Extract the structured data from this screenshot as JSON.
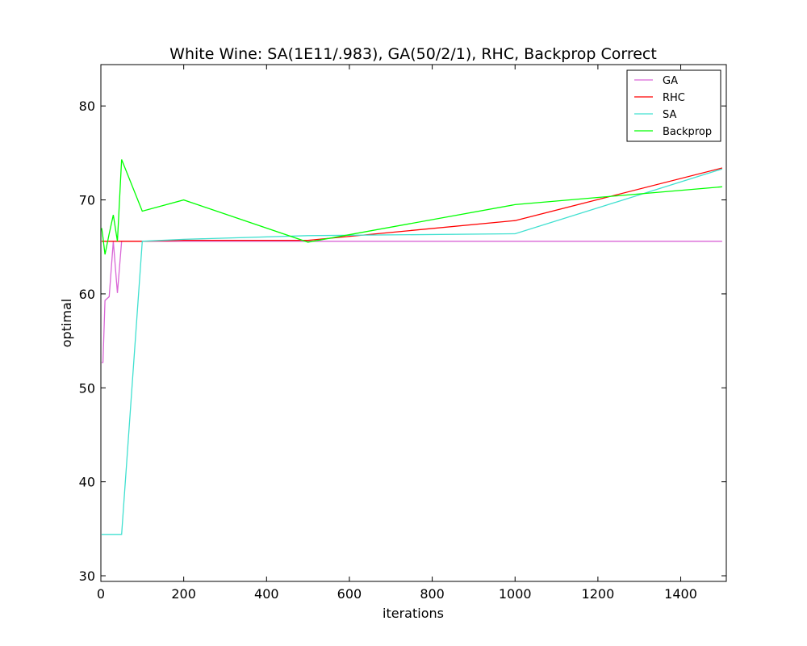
{
  "chart_data": {
    "type": "line",
    "title": "White Wine: SA(1E11/.983), GA(50/2/1), RHC, Backprop Correct",
    "xlabel": "iterations",
    "ylabel": "optimal",
    "xlim": [
      0,
      1510
    ],
    "ylim": [
      29.4,
      84.4
    ],
    "xticks": [
      0,
      200,
      400,
      600,
      800,
      1000,
      1200,
      1400
    ],
    "yticks": [
      30,
      40,
      50,
      60,
      70,
      80
    ],
    "grid": false,
    "legend_position": "top-right",
    "series": [
      {
        "name": "GA",
        "color": "#d966d6",
        "x": [
          2,
          5,
          10,
          20,
          30,
          40,
          50,
          100,
          200,
          500,
          1000,
          1500
        ],
        "y": [
          52.7,
          52.7,
          59.3,
          59.7,
          65.6,
          60.1,
          65.6,
          65.6,
          65.6,
          65.6,
          65.6,
          65.6
        ]
      },
      {
        "name": "RHC",
        "color": "#ff0000",
        "x": [
          2,
          5,
          10,
          20,
          30,
          40,
          50,
          100,
          200,
          500,
          1000,
          1500
        ],
        "y": [
          65.6,
          65.6,
          65.6,
          65.6,
          65.6,
          65.6,
          65.6,
          65.6,
          65.7,
          65.7,
          67.8,
          73.4
        ]
      },
      {
        "name": "SA",
        "color": "#40e0d0",
        "x": [
          2,
          5,
          10,
          20,
          30,
          40,
          50,
          100,
          200,
          500,
          1000,
          1500
        ],
        "y": [
          34.4,
          34.4,
          34.4,
          34.4,
          34.4,
          34.4,
          34.4,
          65.6,
          65.8,
          66.2,
          66.4,
          73.3
        ]
      },
      {
        "name": "Backprop",
        "color": "#00ff00",
        "x": [
          2,
          5,
          10,
          20,
          30,
          40,
          50,
          100,
          200,
          500,
          1000,
          1500
        ],
        "y": [
          67.0,
          66.0,
          64.2,
          66.4,
          68.4,
          65.6,
          74.3,
          68.8,
          70.0,
          65.5,
          69.5,
          71.4
        ]
      }
    ]
  }
}
